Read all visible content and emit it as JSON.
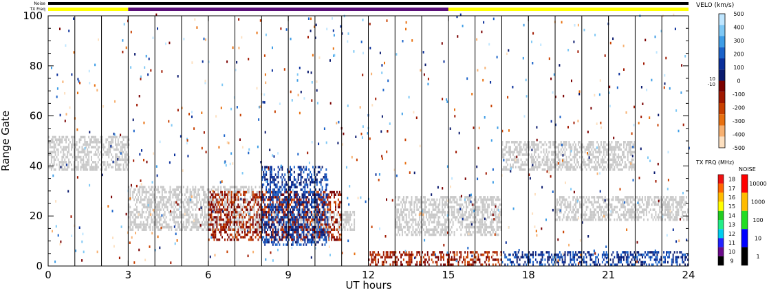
{
  "chart_data": {
    "type": "heatmap",
    "xlabel": "UT hours",
    "ylabel": "Range Gate",
    "xlim": [
      0,
      24
    ],
    "ylim": [
      0,
      100
    ],
    "x_ticks": [
      "0",
      "3",
      "6",
      "9",
      "12",
      "15",
      "18",
      "21",
      "24"
    ],
    "y_ticks": [
      "0",
      "20",
      "40",
      "60",
      "80",
      "100"
    ],
    "top_bars": {
      "noise_label": "Noise",
      "txfreq_label": "TX Freq",
      "txfreq_segments": [
        {
          "start": 0,
          "end": 3,
          "color": "#ffff00"
        },
        {
          "start": 3,
          "end": 15,
          "color": "#5a0f78"
        },
        {
          "start": 15,
          "end": 24,
          "color": "#ffff00"
        }
      ]
    },
    "velocity_scale": {
      "title": "VELO (km/s)",
      "ticks": [
        "500",
        "400",
        "300",
        "200",
        "100",
        "0",
        "-100",
        "-200",
        "-300",
        "-400",
        "-500"
      ],
      "ground_ticks": [
        "10",
        "-10"
      ],
      "colors": [
        "#bfe6ff",
        "#7ec8f5",
        "#3e9de6",
        "#1a62c9",
        "#0a2f9a",
        "#0a1a6e",
        "#7a0000",
        "#a01800",
        "#c84000",
        "#e87010",
        "#f7b070",
        "#fde0c0"
      ]
    },
    "txfreq_scale": {
      "title": "TX FRQ (MHz)",
      "ticks": [
        "18",
        "17",
        "16",
        "15",
        "14",
        "13",
        "12",
        "11",
        "10",
        "9"
      ],
      "colors": [
        "#ee1111",
        "#ff6600",
        "#ffbb00",
        "#ffff00",
        "#22cc22",
        "#22ee88",
        "#00ccee",
        "#2222ff",
        "#6a0a8a",
        "#000000"
      ]
    },
    "noise_scale": {
      "title": "NOISE",
      "ticks": [
        "10000",
        "1000",
        "100",
        "10",
        "1"
      ],
      "colors": [
        "#ff0000",
        "#ffbb00",
        "#22dd22",
        "#0000ff",
        "#000000"
      ]
    },
    "data_regions": [
      {
        "name": "ground scatter band A",
        "t0": 0,
        "t1": 3,
        "g0": 38,
        "g1": 52,
        "kind": "ground"
      },
      {
        "name": "ground scatter band B",
        "t0": 3,
        "t1": 8,
        "g0": 14,
        "g1": 32,
        "kind": "ground"
      },
      {
        "name": "ground scatter band C",
        "t0": 8,
        "t1": 11.5,
        "g0": 14,
        "g1": 22,
        "kind": "ground"
      },
      {
        "name": "ground scatter band D",
        "t0": 13,
        "t1": 17,
        "g0": 12,
        "g1": 28,
        "kind": "ground"
      },
      {
        "name": "ground scatter band E",
        "t0": 17,
        "t1": 22,
        "g0": 38,
        "g1": 50,
        "kind": "ground"
      },
      {
        "name": "ground scatter band F",
        "t0": 19,
        "t1": 24,
        "g0": 18,
        "g1": 28,
        "kind": "ground"
      },
      {
        "name": "negative velocity block",
        "t0": 6,
        "t1": 11,
        "g0": 10,
        "g1": 30,
        "kind": "neg"
      },
      {
        "name": "positive velocity block",
        "t0": 8,
        "t1": 10.5,
        "g0": 8,
        "g1": 40,
        "kind": "pos"
      },
      {
        "name": "near-range negative",
        "t0": 12,
        "t1": 17,
        "g0": 0,
        "g1": 6,
        "kind": "neg"
      },
      {
        "name": "near-range positive",
        "t0": 17,
        "t1": 24,
        "g0": 0,
        "g1": 6,
        "kind": "pos"
      }
    ]
  }
}
